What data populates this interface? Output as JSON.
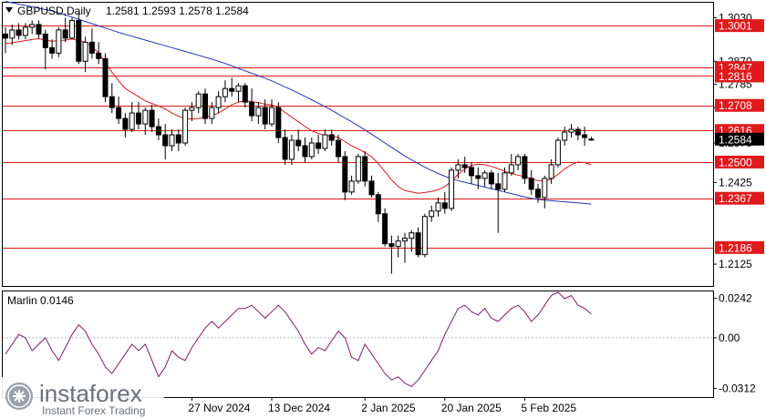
{
  "header": {
    "symbol": "GBPUSD,Daily",
    "ohlc": "1.2581  1.2593  1.2578  1.2584"
  },
  "indicator": {
    "name_value": "Marlin 0.0146"
  },
  "watermark": {
    "brand": "instaforex",
    "tagline": "Instant Forex Trading"
  },
  "colors": {
    "background": "#ffffff",
    "level_line": "#e0191a",
    "level_label_bg": "#e0191a",
    "candle_bull": "#ffffff",
    "candle_bear": "#000000",
    "ma_fast": "#d8181e",
    "ma_slow": "#2432b4",
    "oscillator": "#7a1e6a",
    "current_price_bg": "#000000"
  },
  "chart_data": [
    {
      "type": "candlestick",
      "title": "GBPUSD,Daily",
      "y_ticks": [
        "1.3030",
        "1.2870",
        "1.2785",
        "1.2700",
        "1.2570",
        "1.2425",
        "1.2125"
      ],
      "ylim": [
        1.2045,
        1.3085
      ],
      "x_ticks": [
        {
          "label": "27 Nov 2024",
          "index": 28
        },
        {
          "label": "13 Dec 2024",
          "index": 40
        },
        {
          "label": "2 Jan 2025",
          "index": 54
        },
        {
          "label": "20 Jan 2025",
          "index": 66
        },
        {
          "label": "5 Feb 2025",
          "index": 78
        }
      ],
      "horizontal_levels": [
        {
          "value": 1.3001,
          "label": "1.3001"
        },
        {
          "value": 1.2847,
          "label": "1.2847"
        },
        {
          "value": 1.2816,
          "label": "1.2816"
        },
        {
          "value": 1.2708,
          "label": "1.2708"
        },
        {
          "value": 1.2616,
          "label": "1.2616"
        },
        {
          "value": 1.25,
          "label": "1.2500"
        },
        {
          "value": 1.2367,
          "label": "1.2367"
        },
        {
          "value": 1.2186,
          "label": "1.2186"
        }
      ],
      "current_price": {
        "value": 1.2584,
        "label": "1.2584"
      },
      "candles": [
        [
          1.297,
          1.2995,
          1.29,
          1.2955
        ],
        [
          1.2955,
          1.3005,
          1.293,
          1.2985
        ],
        [
          1.2985,
          1.301,
          1.295,
          1.2965
        ],
        [
          1.2965,
          1.301,
          1.295,
          1.2995
        ],
        [
          1.2995,
          1.302,
          1.297,
          1.3005
        ],
        [
          1.3005,
          1.302,
          1.2955,
          1.297
        ],
        [
          1.297,
          1.2985,
          1.284,
          1.292
        ],
        [
          1.292,
          1.295,
          1.288,
          1.29
        ],
        [
          1.29,
          1.2995,
          1.2885,
          1.2985
        ],
        [
          1.2985,
          1.303,
          1.294,
          1.2955
        ],
        [
          1.2955,
          1.303,
          1.295,
          1.302
        ],
        [
          1.302,
          1.305,
          1.286,
          1.287
        ],
        [
          1.287,
          1.296,
          1.283,
          1.294
        ],
        [
          1.294,
          1.299,
          1.288,
          1.29
        ],
        [
          1.29,
          1.294,
          1.286,
          1.288
        ],
        [
          1.288,
          1.29,
          1.272,
          1.274
        ],
        [
          1.274,
          1.279,
          1.268,
          1.27
        ],
        [
          1.27,
          1.274,
          1.264,
          1.266
        ],
        [
          1.266,
          1.268,
          1.259,
          1.262
        ],
        [
          1.262,
          1.272,
          1.261,
          1.268
        ],
        [
          1.268,
          1.272,
          1.262,
          1.264
        ],
        [
          1.264,
          1.27,
          1.26,
          1.269
        ],
        [
          1.269,
          1.271,
          1.261,
          1.263
        ],
        [
          1.263,
          1.266,
          1.258,
          1.26
        ],
        [
          1.26,
          1.264,
          1.251,
          1.256
        ],
        [
          1.256,
          1.262,
          1.254,
          1.26
        ],
        [
          1.26,
          1.262,
          1.254,
          1.257
        ],
        [
          1.257,
          1.27,
          1.256,
          1.269
        ],
        [
          1.269,
          1.272,
          1.265,
          1.27
        ],
        [
          1.27,
          1.276,
          1.268,
          1.275
        ],
        [
          1.275,
          1.277,
          1.264,
          1.266
        ],
        [
          1.266,
          1.272,
          1.264,
          1.27
        ],
        [
          1.27,
          1.276,
          1.268,
          1.274
        ],
        [
          1.274,
          1.28,
          1.272,
          1.277
        ],
        [
          1.277,
          1.281,
          1.274,
          1.276
        ],
        [
          1.276,
          1.279,
          1.272,
          1.278
        ],
        [
          1.278,
          1.279,
          1.27,
          1.272
        ],
        [
          1.272,
          1.277,
          1.265,
          1.267
        ],
        [
          1.267,
          1.272,
          1.264,
          1.27
        ],
        [
          1.27,
          1.273,
          1.262,
          1.264
        ],
        [
          1.264,
          1.273,
          1.263,
          1.27
        ],
        [
          1.27,
          1.272,
          1.257,
          1.259
        ],
        [
          1.259,
          1.262,
          1.249,
          1.251
        ],
        [
          1.251,
          1.26,
          1.249,
          1.258
        ],
        [
          1.258,
          1.262,
          1.254,
          1.256
        ],
        [
          1.256,
          1.259,
          1.25,
          1.252
        ],
        [
          1.252,
          1.259,
          1.251,
          1.257
        ],
        [
          1.257,
          1.26,
          1.253,
          1.255
        ],
        [
          1.255,
          1.262,
          1.254,
          1.26
        ],
        [
          1.26,
          1.262,
          1.256,
          1.258
        ],
        [
          1.258,
          1.26,
          1.25,
          1.252
        ],
        [
          1.252,
          1.254,
          1.236,
          1.239
        ],
        [
          1.239,
          1.245,
          1.238,
          1.243
        ],
        [
          1.243,
          1.253,
          1.242,
          1.252
        ],
        [
          1.252,
          1.254,
          1.241,
          1.243
        ],
        [
          1.243,
          1.245,
          1.237,
          1.238
        ],
        [
          1.238,
          1.239,
          1.228,
          1.231
        ],
        [
          1.231,
          1.233,
          1.219,
          1.22
        ],
        [
          1.22,
          1.223,
          1.209,
          1.219
        ],
        [
          1.219,
          1.223,
          1.215,
          1.221
        ],
        [
          1.221,
          1.224,
          1.213,
          1.222
        ],
        [
          1.222,
          1.225,
          1.217,
          1.224
        ],
        [
          1.224,
          1.226,
          1.215,
          1.216
        ],
        [
          1.216,
          1.231,
          1.215,
          1.23
        ],
        [
          1.23,
          1.234,
          1.228,
          1.232
        ],
        [
          1.232,
          1.237,
          1.23,
          1.235
        ],
        [
          1.235,
          1.239,
          1.231,
          1.233
        ],
        [
          1.233,
          1.248,
          1.232,
          1.247
        ],
        [
          1.247,
          1.251,
          1.244,
          1.249
        ],
        [
          1.249,
          1.252,
          1.246,
          1.248
        ],
        [
          1.248,
          1.25,
          1.242,
          1.245
        ],
        [
          1.245,
          1.248,
          1.24,
          1.244
        ],
        [
          1.244,
          1.247,
          1.241,
          1.246
        ],
        [
          1.246,
          1.247,
          1.24,
          1.242
        ],
        [
          1.242,
          1.246,
          1.224,
          1.24
        ],
        [
          1.24,
          1.248,
          1.239,
          1.246
        ],
        [
          1.246,
          1.253,
          1.245,
          1.249
        ],
        [
          1.249,
          1.253,
          1.247,
          1.252
        ],
        [
          1.252,
          1.253,
          1.242,
          1.244
        ],
        [
          1.244,
          1.247,
          1.238,
          1.24
        ],
        [
          1.24,
          1.242,
          1.235,
          1.237
        ],
        [
          1.237,
          1.245,
          1.233,
          1.244
        ],
        [
          1.244,
          1.251,
          1.242,
          1.249
        ],
        [
          1.249,
          1.259,
          1.248,
          1.258
        ],
        [
          1.258,
          1.263,
          1.256,
          1.261
        ],
        [
          1.261,
          1.264,
          1.259,
          1.262
        ],
        [
          1.262,
          1.263,
          1.258,
          1.26
        ],
        [
          1.26,
          1.263,
          1.256,
          1.259
        ],
        [
          1.2581,
          1.2593,
          1.2578,
          1.2584
        ]
      ],
      "ma_fast": [
        1.2935,
        1.2938,
        1.2942,
        1.2946,
        1.295,
        1.2953,
        1.2948,
        1.2944,
        1.2946,
        1.2948,
        1.2952,
        1.2946,
        1.294,
        1.2925,
        1.29,
        1.2865,
        1.283,
        1.2798,
        1.277,
        1.2755,
        1.274,
        1.2725,
        1.2715,
        1.2705,
        1.2695,
        1.268,
        1.2668,
        1.266,
        1.2658,
        1.266,
        1.2665,
        1.267,
        1.268,
        1.2695,
        1.271,
        1.272,
        1.2725,
        1.2722,
        1.2718,
        1.2712,
        1.271,
        1.27,
        1.2682,
        1.2665,
        1.2648,
        1.263,
        1.2615,
        1.2605,
        1.2598,
        1.2595,
        1.259,
        1.2575,
        1.256,
        1.2548,
        1.2535,
        1.252,
        1.2495,
        1.2465,
        1.2435,
        1.241,
        1.2395,
        1.239,
        1.2385,
        1.2388,
        1.2392,
        1.2398,
        1.241,
        1.243,
        1.2455,
        1.2475,
        1.2488,
        1.2492,
        1.249,
        1.2484,
        1.2476,
        1.2466,
        1.2458,
        1.2452,
        1.2446,
        1.244,
        1.2432,
        1.243,
        1.2438,
        1.2455,
        1.2475,
        1.249,
        1.25,
        1.2498,
        1.249
      ],
      "ma_slow_points": [
        [
          20,
          1.306
        ],
        [
          35,
          1.296
        ],
        [
          45,
          1.288
        ],
        [
          55,
          1.276
        ],
        [
          66,
          1.263
        ],
        [
          77,
          1.25
        ],
        [
          85,
          1.243
        ],
        [
          100,
          1.239
        ],
        [
          120,
          1.2385
        ]
      ],
      "ma_slow": [
        1.309,
        1.3085,
        1.308,
        1.3075,
        1.307,
        1.3065,
        1.306,
        1.3055,
        1.3048,
        1.304,
        1.3032,
        1.3024,
        1.3016,
        1.3008,
        1.3,
        1.2992,
        1.2984,
        1.2976,
        1.2969,
        1.2962,
        1.2955,
        1.2948,
        1.2941,
        1.2934,
        1.2927,
        1.292,
        1.2913,
        1.2906,
        1.2899,
        1.2892,
        1.2885,
        1.2878,
        1.287,
        1.2862,
        1.2853,
        1.2844,
        1.2835,
        1.2826,
        1.2817,
        1.2808,
        1.2798,
        1.2787,
        1.2776,
        1.2765,
        1.2753,
        1.2741,
        1.2729,
        1.2716,
        1.2703,
        1.269,
        1.2676,
        1.2662,
        1.2648,
        1.2633,
        1.2618,
        1.2602,
        1.2586,
        1.257,
        1.2554,
        1.2538,
        1.2522,
        1.2508,
        1.2494,
        1.2481,
        1.2469,
        1.2458,
        1.2448,
        1.2439,
        1.2432,
        1.2426,
        1.242,
        1.2414,
        1.2408,
        1.2402,
        1.2396,
        1.239,
        1.2384,
        1.2378,
        1.2372,
        1.2367,
        1.2363,
        1.236,
        1.2358,
        1.2356,
        1.2354,
        1.2352,
        1.235,
        1.2348,
        1.2345
      ]
    },
    {
      "type": "line",
      "title": "Marlin 0.0146",
      "y_ticks": [
        "0.0242",
        "0.00",
        "-0.0312"
      ],
      "ylim": [
        -0.0365,
        0.0285
      ],
      "zero_line": 0,
      "values": [
        -0.01,
        -0.004,
        0.002,
        0.0,
        -0.008,
        -0.004,
        0.0,
        -0.008,
        -0.014,
        -0.006,
        0.002,
        0.008,
        0.004,
        -0.004,
        -0.01,
        -0.018,
        -0.022,
        -0.016,
        -0.01,
        -0.004,
        -0.008,
        -0.004,
        -0.014,
        -0.024,
        -0.018,
        -0.008,
        -0.012,
        -0.014,
        -0.006,
        0.0,
        0.006,
        0.01,
        0.006,
        0.01,
        0.014,
        0.018,
        0.018,
        0.02,
        0.016,
        0.012,
        0.016,
        0.02,
        0.016,
        0.01,
        0.004,
        -0.004,
        -0.01,
        -0.006,
        -0.008,
        -0.002,
        0.004,
        0.0,
        -0.012,
        -0.014,
        -0.004,
        -0.01,
        -0.016,
        -0.022,
        -0.026,
        -0.024,
        -0.028,
        -0.03,
        -0.026,
        -0.02,
        -0.014,
        -0.008,
        0.002,
        0.01,
        0.018,
        0.02,
        0.016,
        0.014,
        0.018,
        0.012,
        0.01,
        0.014,
        0.018,
        0.02,
        0.016,
        0.01,
        0.014,
        0.02,
        0.026,
        0.028,
        0.024,
        0.026,
        0.02,
        0.018,
        0.0146
      ]
    }
  ]
}
